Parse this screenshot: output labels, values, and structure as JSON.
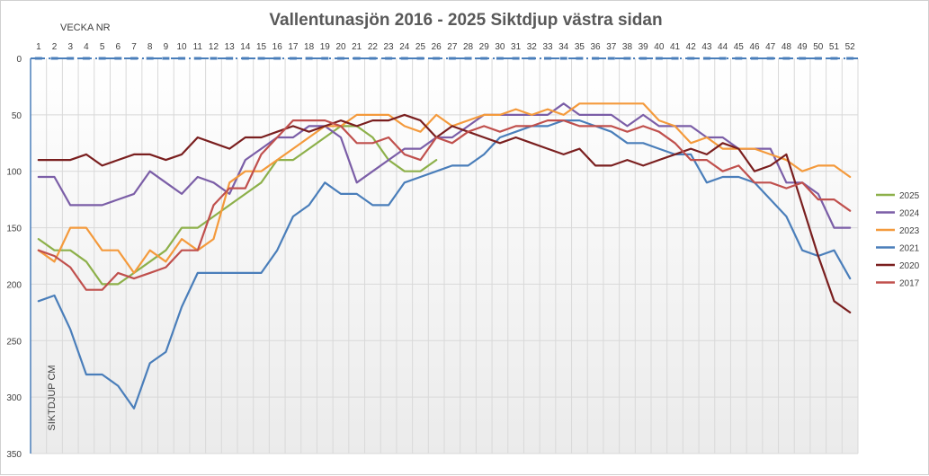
{
  "chart_data": {
    "type": "line",
    "title": "Vallentunasjön 2016 - 2025 Siktdjup västra sidan",
    "xlabel": "VECKA NR",
    "ylabel": "SIKTDJUP CM",
    "x": [
      1,
      2,
      3,
      4,
      5,
      6,
      7,
      8,
      9,
      10,
      11,
      12,
      13,
      14,
      15,
      16,
      17,
      18,
      19,
      20,
      21,
      22,
      23,
      24,
      25,
      26,
      27,
      28,
      29,
      30,
      31,
      32,
      33,
      34,
      35,
      36,
      37,
      38,
      39,
      40,
      41,
      42,
      43,
      44,
      45,
      46,
      47,
      48,
      49,
      50,
      51,
      52
    ],
    "y_ticks": [
      0,
      50,
      100,
      150,
      200,
      250,
      300,
      350
    ],
    "ylim": [
      0,
      350
    ],
    "y_reversed": true,
    "x_axis_position": "top",
    "grid": true,
    "legend_position": "right",
    "series": [
      {
        "name": "2025",
        "color": "#8db04a",
        "values": [
          160,
          170,
          170,
          180,
          200,
          200,
          190,
          180,
          170,
          150,
          150,
          140,
          130,
          120,
          110,
          90,
          90,
          80,
          70,
          60,
          60,
          70,
          90,
          100,
          100,
          90,
          null,
          null,
          null,
          null,
          null,
          null,
          null,
          null,
          null,
          null,
          null,
          null,
          null,
          null,
          null,
          null,
          null,
          null,
          null,
          null,
          null,
          null,
          null,
          null,
          null,
          null
        ]
      },
      {
        "name": "2024",
        "color": "#7b5ea7",
        "values": [
          105,
          105,
          130,
          130,
          130,
          125,
          120,
          100,
          110,
          120,
          105,
          110,
          120,
          90,
          80,
          70,
          70,
          60,
          60,
          70,
          110,
          100,
          90,
          80,
          80,
          70,
          70,
          60,
          50,
          50,
          50,
          50,
          50,
          40,
          50,
          50,
          50,
          60,
          50,
          60,
          60,
          60,
          70,
          70,
          80,
          80,
          80,
          110,
          110,
          120,
          150,
          150
        ]
      },
      {
        "name": "2023",
        "color": "#f49a3c",
        "values": [
          170,
          180,
          150,
          150,
          170,
          170,
          190,
          170,
          180,
          160,
          170,
          160,
          110,
          100,
          100,
          90,
          80,
          70,
          60,
          60,
          50,
          50,
          50,
          60,
          65,
          50,
          60,
          55,
          50,
          50,
          45,
          50,
          45,
          50,
          40,
          40,
          40,
          40,
          40,
          55,
          60,
          75,
          70,
          80,
          80,
          80,
          85,
          90,
          100,
          95,
          95,
          105
        ]
      },
      {
        "name": "2021",
        "color": "#4a7eba",
        "values": [
          215,
          210,
          240,
          280,
          280,
          290,
          310,
          270,
          260,
          220,
          190,
          190,
          190,
          190,
          190,
          170,
          140,
          130,
          110,
          120,
          120,
          130,
          130,
          110,
          105,
          100,
          95,
          95,
          85,
          70,
          65,
          60,
          60,
          55,
          55,
          60,
          65,
          75,
          75,
          80,
          85,
          85,
          110,
          105,
          105,
          110,
          125,
          140,
          170,
          175,
          170,
          195
        ]
      },
      {
        "name": "2020",
        "color": "#7a1f1f",
        "values": [
          90,
          90,
          90,
          85,
          95,
          90,
          85,
          85,
          90,
          85,
          70,
          75,
          80,
          70,
          70,
          65,
          60,
          65,
          60,
          55,
          60,
          55,
          55,
          50,
          55,
          70,
          60,
          65,
          70,
          75,
          70,
          75,
          80,
          85,
          80,
          95,
          95,
          90,
          95,
          90,
          85,
          80,
          85,
          75,
          80,
          100,
          95,
          85,
          130,
          175,
          215,
          225
        ]
      },
      {
        "name": "2017",
        "color": "#c0504d",
        "values": [
          170,
          175,
          185,
          205,
          205,
          190,
          195,
          190,
          185,
          170,
          170,
          130,
          115,
          115,
          85,
          70,
          55,
          55,
          55,
          60,
          75,
          75,
          70,
          85,
          90,
          70,
          75,
          65,
          60,
          65,
          60,
          60,
          55,
          55,
          60,
          60,
          60,
          65,
          60,
          65,
          75,
          90,
          90,
          100,
          95,
          110,
          110,
          115,
          110,
          125,
          125,
          135
        ]
      }
    ]
  }
}
